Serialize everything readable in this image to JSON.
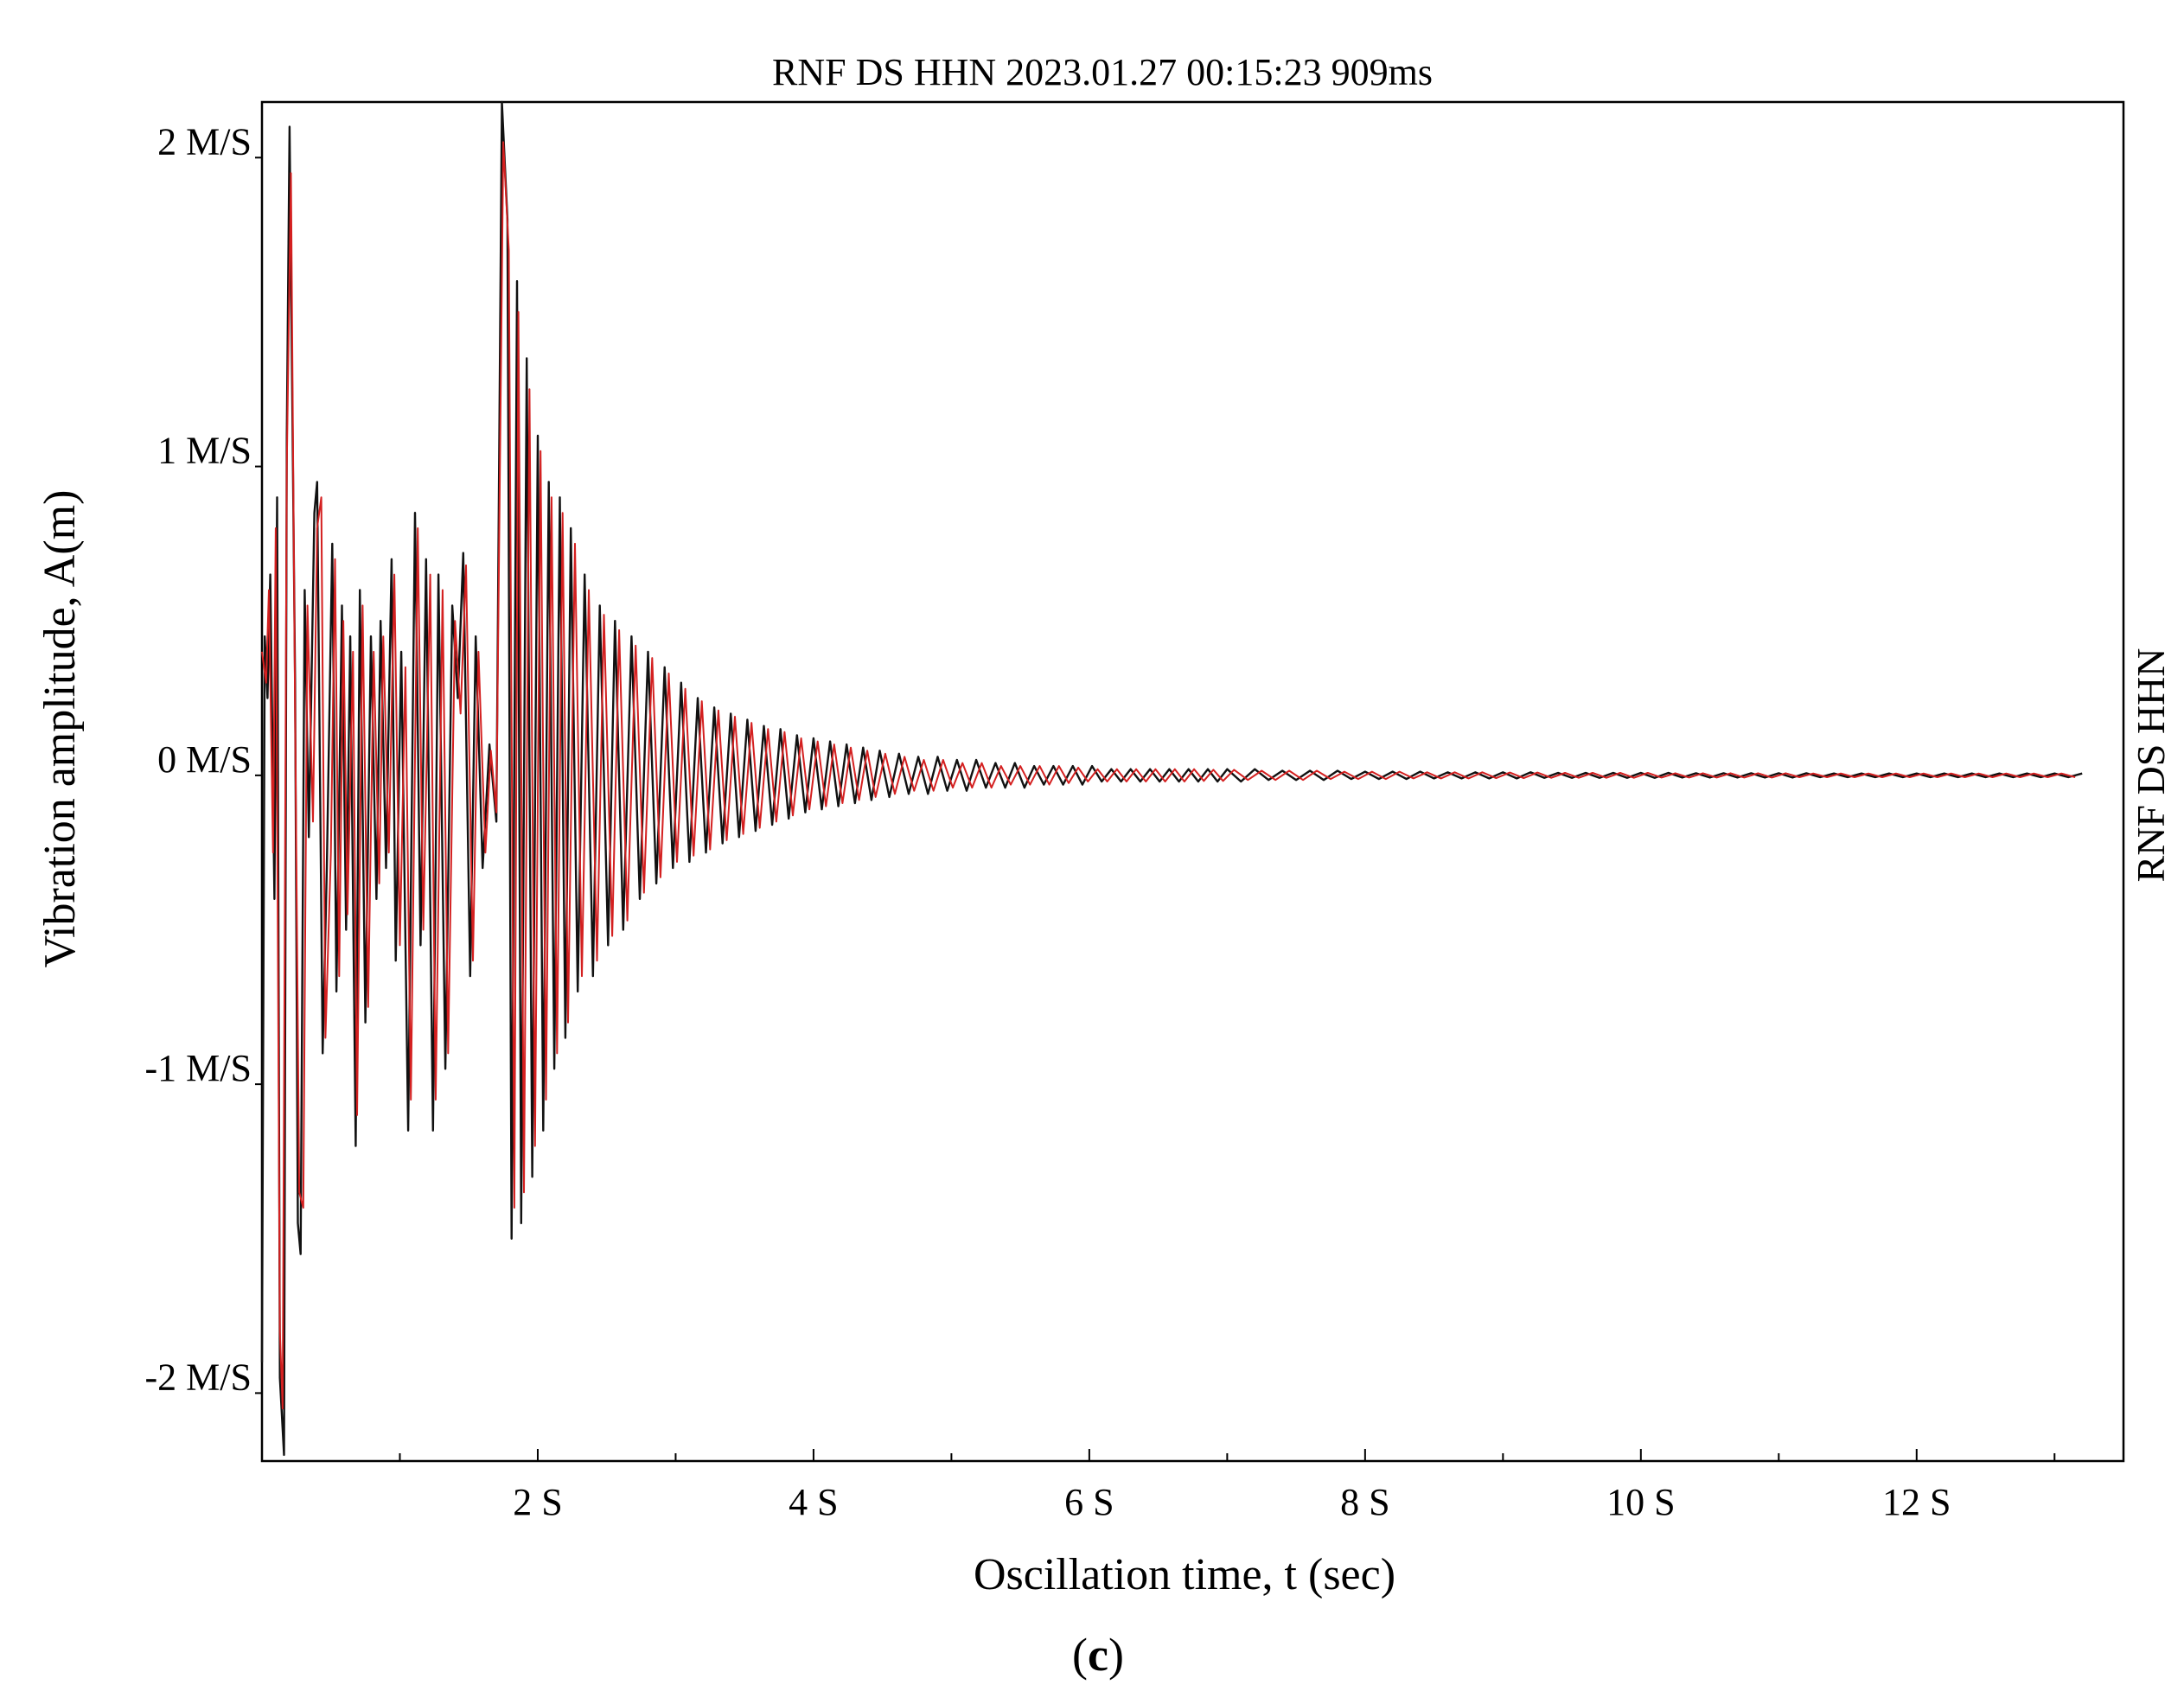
{
  "figure_label_prefix": "(",
  "figure_label_letter": "c",
  "figure_label_suffix": ")",
  "chart_data": {
    "type": "line",
    "title": "RNF DS HHN 2023.01.27 00:15:23 909ms",
    "xlabel": "Oscillation time, t (sec)",
    "ylabel": "Vibration amplitude, A(m)",
    "right_label": "RNF DS HHN",
    "xlim": [
      0,
      13.5
    ],
    "ylim": [
      -2.22,
      2.18
    ],
    "x_ticks": [
      {
        "value": 2,
        "label": "2 S"
      },
      {
        "value": 4,
        "label": "4 S"
      },
      {
        "value": 6,
        "label": "6 S"
      },
      {
        "value": 8,
        "label": "8 S"
      },
      {
        "value": 10,
        "label": "10 S"
      },
      {
        "value": 12,
        "label": "12 S"
      }
    ],
    "x_minor_ticks": [
      1,
      3,
      5,
      7,
      9,
      11,
      13
    ],
    "y_ticks": [
      {
        "value": 2,
        "label": "2 M/S"
      },
      {
        "value": 1,
        "label": "1 M/S"
      },
      {
        "value": 0,
        "label": "0 M/S"
      },
      {
        "value": -1,
        "label": "-1 M/S"
      },
      {
        "value": -2,
        "label": "-2 M/S"
      }
    ],
    "grid": false,
    "series": [
      {
        "color": "#111111",
        "values_note": "",
        "t": [
          0.0,
          0.02,
          0.04,
          0.06,
          0.09,
          0.11,
          0.13,
          0.16,
          0.18,
          0.2,
          0.24,
          0.26,
          0.28,
          0.31,
          0.34,
          0.38,
          0.4,
          0.44,
          0.47,
          0.51,
          0.54,
          0.58,
          0.61,
          0.64,
          0.68,
          0.71,
          0.75,
          0.79,
          0.83,
          0.86,
          0.9,
          0.94,
          0.97,
          1.01,
          1.06,
          1.11,
          1.15,
          1.19,
          1.24,
          1.28,
          1.33,
          1.38,
          1.42,
          1.46,
          1.51,
          1.55,
          1.6,
          1.65,
          1.7,
          1.74,
          1.78,
          1.81,
          1.85,
          1.88,
          1.92,
          1.96,
          2.0,
          2.04,
          2.08,
          2.12,
          2.16,
          2.2,
          2.24,
          2.29,
          2.34,
          2.4,
          2.45,
          2.51,
          2.56,
          2.62,
          2.68,
          2.74,
          2.8,
          2.86,
          2.92,
          2.98,
          3.04,
          3.1,
          3.16,
          3.22,
          3.28,
          3.34,
          3.4,
          3.46,
          3.52,
          3.58,
          3.64,
          3.7,
          3.76,
          3.82,
          3.88,
          3.94,
          4.0,
          4.06,
          4.12,
          4.18,
          4.24,
          4.3,
          4.36,
          4.42,
          4.48,
          4.55,
          4.62,
          4.69,
          4.76,
          4.83,
          4.9,
          4.97,
          5.04,
          5.11,
          5.18,
          5.25,
          5.32,
          5.39,
          5.46,
          5.53,
          5.6,
          5.67,
          5.74,
          5.81,
          5.88,
          5.95,
          6.02,
          6.09,
          6.16,
          6.23,
          6.3,
          6.37,
          6.44,
          6.51,
          6.58,
          6.65,
          6.72,
          6.79,
          6.86,
          6.93,
          7.0,
          7.1,
          7.2,
          7.3,
          7.4,
          7.5,
          7.6,
          7.7,
          7.8,
          7.9,
          8.0,
          8.1,
          8.2,
          8.3,
          8.4,
          8.5,
          8.6,
          8.7,
          8.8,
          8.9,
          9.0,
          9.1,
          9.2,
          9.3,
          9.4,
          9.5,
          9.6,
          9.7,
          9.8,
          9.9,
          10.0,
          10.1,
          10.2,
          10.3,
          10.4,
          10.5,
          10.6,
          10.7,
          10.8,
          10.9,
          11.0,
          11.1,
          11.2,
          11.3,
          11.4,
          11.5,
          11.6,
          11.7,
          11.8,
          11.9,
          12.0,
          12.1,
          12.2,
          12.3,
          12.4,
          12.5,
          12.6,
          12.7,
          12.8,
          12.9,
          13.0,
          13.1,
          13.2,
          13.3,
          13.4,
          13.5
        ],
        "a": [
          -1.9,
          0.45,
          0.25,
          0.65,
          -0.4,
          0.9,
          -1.95,
          -2.2,
          1.1,
          2.1,
          0.3,
          -1.45,
          -1.55,
          0.6,
          -0.2,
          0.85,
          0.95,
          -0.9,
          -0.3,
          0.75,
          -0.7,
          0.55,
          -0.5,
          0.45,
          -1.2,
          0.6,
          -0.8,
          0.45,
          -0.4,
          0.5,
          -0.3,
          0.7,
          -0.6,
          0.4,
          -1.15,
          0.85,
          -0.55,
          0.7,
          -1.15,
          0.65,
          -0.95,
          0.55,
          0.25,
          0.72,
          -0.65,
          0.45,
          -0.3,
          0.1,
          -0.15,
          2.18,
          1.8,
          -1.5,
          1.6,
          -1.45,
          1.35,
          -1.3,
          1.1,
          -1.15,
          0.95,
          -0.95,
          0.9,
          -0.85,
          0.8,
          -0.7,
          0.65,
          -0.65,
          0.55,
          -0.55,
          0.5,
          -0.5,
          0.45,
          -0.4,
          0.4,
          -0.35,
          0.35,
          -0.3,
          0.3,
          -0.28,
          0.25,
          -0.25,
          0.22,
          -0.22,
          0.2,
          -0.2,
          0.18,
          -0.18,
          0.16,
          -0.16,
          0.15,
          -0.14,
          0.13,
          -0.12,
          0.12,
          -0.11,
          0.11,
          -0.1,
          0.1,
          -0.09,
          0.09,
          -0.08,
          0.08,
          -0.07,
          0.07,
          -0.06,
          0.06,
          -0.06,
          0.06,
          -0.05,
          0.05,
          -0.05,
          0.05,
          -0.04,
          0.04,
          -0.04,
          0.04,
          -0.04,
          0.03,
          -0.03,
          0.03,
          -0.03,
          0.03,
          -0.03,
          0.03,
          -0.02,
          0.02,
          -0.02,
          0.02,
          -0.02,
          0.02,
          -0.02,
          0.02,
          -0.02,
          0.02,
          -0.02,
          0.02,
          -0.02,
          0.02,
          -0.02,
          0.02,
          -0.015,
          0.015,
          -0.015,
          0.015,
          -0.015,
          0.015,
          -0.012,
          0.012,
          -0.012,
          0.012,
          -0.012,
          0.012,
          -0.01,
          0.01,
          -0.01,
          0.01,
          -0.01,
          0.01,
          -0.01,
          0.01,
          -0.008,
          0.008,
          -0.008,
          0.008,
          -0.008,
          0.008,
          -0.008,
          0.008,
          -0.008,
          0.008,
          -0.007,
          0.007,
          -0.007,
          0.007,
          -0.007,
          0.007,
          -0.007,
          0.007,
          -0.007,
          0.007,
          -0.006,
          0.006,
          -0.006,
          0.006,
          -0.006,
          0.006,
          -0.006,
          0.006,
          -0.006,
          0.006,
          -0.006,
          0.006,
          -0.006,
          0.006,
          -0.006,
          0.006,
          -0.006,
          0.006,
          -0.006,
          0.006
        ]
      },
      {
        "color": "#d42020",
        "values_note": "",
        "t": [
          0.0,
          0.03,
          0.05,
          0.08,
          0.1,
          0.13,
          0.15,
          0.18,
          0.21,
          0.24,
          0.27,
          0.3,
          0.33,
          0.37,
          0.4,
          0.43,
          0.46,
          0.5,
          0.53,
          0.56,
          0.59,
          0.62,
          0.66,
          0.69,
          0.73,
          0.77,
          0.81,
          0.85,
          0.88,
          0.92,
          0.96,
          1.0,
          1.04,
          1.08,
          1.13,
          1.17,
          1.22,
          1.26,
          1.31,
          1.35,
          1.4,
          1.44,
          1.48,
          1.53,
          1.57,
          1.62,
          1.66,
          1.7,
          1.75,
          1.79,
          1.83,
          1.86,
          1.9,
          1.94,
          1.98,
          2.02,
          2.06,
          2.1,
          2.14,
          2.18,
          2.22,
          2.27,
          2.32,
          2.37,
          2.43,
          2.48,
          2.54,
          2.59,
          2.65,
          2.71,
          2.77,
          2.83,
          2.89,
          2.95,
          3.01,
          3.07,
          3.13,
          3.19,
          3.25,
          3.31,
          3.37,
          3.43,
          3.49,
          3.55,
          3.61,
          3.67,
          3.73,
          3.79,
          3.85,
          3.91,
          3.97,
          4.03,
          4.09,
          4.15,
          4.21,
          4.27,
          4.33,
          4.39,
          4.45,
          4.52,
          4.59,
          4.66,
          4.73,
          4.8,
          4.87,
          4.94,
          5.01,
          5.08,
          5.15,
          5.22,
          5.29,
          5.36,
          5.43,
          5.5,
          5.57,
          5.64,
          5.71,
          5.78,
          5.85,
          5.92,
          5.99,
          6.06,
          6.13,
          6.2,
          6.27,
          6.34,
          6.41,
          6.48,
          6.55,
          6.62,
          6.69,
          6.76,
          6.83,
          6.9,
          6.97,
          7.05,
          7.15,
          7.25,
          7.35,
          7.45,
          7.55,
          7.65,
          7.75,
          7.85,
          7.95,
          8.05,
          8.15,
          8.25,
          8.35,
          8.45,
          8.55,
          8.65,
          8.75,
          8.85,
          8.95,
          9.05,
          9.15,
          9.25,
          9.35,
          9.45,
          9.55,
          9.65,
          9.75,
          9.85,
          9.95,
          10.05,
          10.15,
          10.25,
          10.35,
          10.45,
          10.55,
          10.65,
          10.75,
          10.85,
          10.95,
          11.05,
          11.15,
          11.25,
          11.35,
          11.45,
          11.55,
          11.65,
          11.75,
          11.85,
          11.95,
          12.05,
          12.15,
          12.25,
          12.35,
          12.45,
          12.55,
          12.65,
          12.75,
          12.85,
          12.95,
          13.05,
          13.15,
          13.25,
          13.35,
          13.45
        ],
        "a": [
          0.4,
          0.3,
          0.6,
          -0.25,
          0.8,
          -1.8,
          -2.05,
          1.0,
          1.95,
          0.2,
          -1.35,
          -1.4,
          0.55,
          -0.15,
          0.8,
          0.9,
          -0.85,
          -0.25,
          0.7,
          -0.65,
          0.5,
          -0.45,
          0.4,
          -1.1,
          0.55,
          -0.75,
          0.4,
          -0.35,
          0.45,
          -0.25,
          0.65,
          -0.55,
          0.35,
          -1.05,
          0.8,
          -0.5,
          0.65,
          -1.05,
          0.6,
          -0.9,
          0.5,
          0.2,
          0.68,
          -0.6,
          0.4,
          -0.25,
          0.08,
          -0.12,
          2.05,
          1.7,
          -1.4,
          1.5,
          -1.35,
          1.25,
          -1.2,
          1.05,
          -1.05,
          0.9,
          -0.9,
          0.85,
          -0.8,
          0.75,
          -0.65,
          0.6,
          -0.6,
          0.52,
          -0.52,
          0.47,
          -0.47,
          0.42,
          -0.38,
          0.38,
          -0.33,
          0.33,
          -0.28,
          0.28,
          -0.26,
          0.24,
          -0.24,
          0.21,
          -0.21,
          0.19,
          -0.19,
          0.17,
          -0.17,
          0.15,
          -0.15,
          0.14,
          -0.13,
          0.12,
          -0.11,
          0.11,
          -0.1,
          0.1,
          -0.09,
          0.09,
          -0.08,
          0.08,
          -0.07,
          0.07,
          -0.06,
          0.06,
          -0.05,
          0.05,
          -0.05,
          0.05,
          -0.04,
          0.04,
          -0.04,
          0.04,
          -0.04,
          0.03,
          -0.03,
          0.03,
          -0.03,
          0.03,
          -0.03,
          0.03,
          -0.025,
          0.025,
          -0.02,
          0.02,
          -0.02,
          0.02,
          -0.02,
          0.02,
          -0.02,
          0.02,
          -0.02,
          0.02,
          -0.02,
          0.02,
          -0.018,
          0.018,
          -0.018,
          0.018,
          -0.015,
          0.015,
          -0.015,
          0.015,
          -0.015,
          0.015,
          -0.012,
          0.012,
          -0.012,
          0.012,
          -0.012,
          0.012,
          -0.01,
          0.01,
          -0.01,
          0.01,
          -0.01,
          0.01,
          -0.009,
          0.009,
          -0.009,
          0.009,
          -0.008,
          0.008,
          -0.008,
          0.008,
          -0.008,
          0.008,
          -0.008,
          0.008,
          -0.007,
          0.007,
          -0.007,
          0.007,
          -0.007,
          0.007,
          -0.007,
          0.007,
          -0.007,
          0.007,
          -0.006,
          0.006,
          -0.006,
          0.006,
          -0.006,
          0.006,
          -0.006,
          0.006,
          -0.006,
          0.006,
          -0.006,
          0.006,
          -0.006,
          0.006,
          -0.006,
          0.006,
          -0.006,
          0.006,
          -0.006,
          0.006,
          -0.006
        ]
      }
    ]
  }
}
